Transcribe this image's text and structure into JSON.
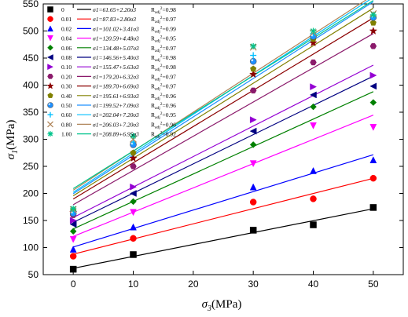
{
  "chart_data": {
    "type": "scatter",
    "xlabel_main": "σ",
    "xlabel_sub": "3",
    "xlabel_unit": "(MPa)",
    "ylabel_main": "σ",
    "ylabel_sub": "1",
    "ylabel_unit": "(MPa)",
    "xlim": [
      -5,
      55
    ],
    "ylim": [
      50,
      550
    ],
    "xticks": [
      0,
      10,
      20,
      30,
      40,
      50
    ],
    "yticks": [
      50,
      100,
      150,
      200,
      250,
      300,
      350,
      400,
      450,
      500,
      550
    ],
    "x": [
      0,
      10,
      30,
      40,
      50
    ],
    "series": [
      {
        "name": "0",
        "color": "#000000",
        "marker": "square",
        "values": [
          60,
          87,
          132,
          142,
          174
        ],
        "fit": "σ1=61.65+2.20σ3",
        "r2": "0.98",
        "intercept": 61.65,
        "slope": 2.2
      },
      {
        "name": "0.01",
        "color": "#ff0000",
        "marker": "circle",
        "values": [
          84,
          117,
          184,
          190,
          228
        ],
        "fit": "σ1=87.83+2.80σ3",
        "r2": "0.97",
        "intercept": 87.83,
        "slope": 2.8
      },
      {
        "name": "0.02",
        "color": "#0000ff",
        "marker": "triangle-up",
        "values": [
          97,
          138,
          212,
          242,
          262
        ],
        "fit": "σ1=101.02+3.41σ3",
        "r2": "0.99",
        "intercept": 101.02,
        "slope": 3.41
      },
      {
        "name": "0.04",
        "color": "#ff00ff",
        "marker": "triangle-down",
        "values": [
          115,
          165,
          255,
          325,
          322
        ],
        "fit": "σ1=120.59+4.48σ3",
        "r2": "0.95",
        "intercept": 120.59,
        "slope": 4.48
      },
      {
        "name": "0.06",
        "color": "#008000",
        "marker": "diamond",
        "values": [
          130,
          185,
          290,
          360,
          368
        ],
        "fit": "σ1=134.48+5.07σ3",
        "r2": "0.97",
        "intercept": 134.48,
        "slope": 5.07
      },
      {
        "name": "0.08",
        "color": "#000080",
        "marker": "triangle-left",
        "values": [
          143,
          200,
          315,
          382,
          398
        ],
        "fit": "σ1=146.56+5.40σ3",
        "r2": "0.98",
        "intercept": 146.56,
        "slope": 5.4
      },
      {
        "name": "0.10",
        "color": "#9400d3",
        "marker": "triangle-right",
        "values": [
          150,
          212,
          336,
          397,
          418
        ],
        "fit": "σ1=155.47+5.63σ3",
        "r2": "0.98",
        "intercept": 155.47,
        "slope": 5.63
      },
      {
        "name": "0.20",
        "color": "#8b1a6b",
        "marker": "hexagon",
        "values": [
          160,
          250,
          390,
          442,
          472
        ],
        "fit": "σ1=179.20+6.32σ3",
        "r2": "0.97",
        "intercept": 179.2,
        "slope": 6.32
      },
      {
        "name": "0.30",
        "color": "#8b0000",
        "marker": "star",
        "values": [
          165,
          265,
          420,
          478,
          500
        ],
        "fit": "σ1=189.70+6.69σ3",
        "r2": "0.97",
        "intercept": 189.7,
        "slope": 6.69
      },
      {
        "name": "0.40",
        "color": "#808000",
        "marker": "pentagon",
        "values": [
          168,
          275,
          430,
          485,
          515
        ],
        "fit": "σ1=195.61+6.93σ3",
        "r2": "0.96",
        "intercept": 195.61,
        "slope": 6.93
      },
      {
        "name": "0.50",
        "color": "#1e90ff",
        "marker": "shaded-circle",
        "values": [
          163,
          290,
          444,
          490,
          525
        ],
        "fit": "σ1=199.52+7.09σ3",
        "r2": "0.96",
        "intercept": 199.52,
        "slope": 7.09
      },
      {
        "name": "0.60",
        "color": "#00bfff",
        "marker": "plus",
        "values": [
          167,
          295,
          455,
          495,
          528
        ],
        "fit": "σ1=202.04+7.20σ3",
        "r2": "0.95",
        "intercept": 202.04,
        "slope": 7.2
      },
      {
        "name": "0.80",
        "color": "#b0855a",
        "marker": "x",
        "values": [
          170,
          300,
          470,
          497,
          532
        ],
        "fit": "σ1=206.03+7.20σ3",
        "r2": "0.96",
        "intercept": 206.03,
        "slope": 7.2
      },
      {
        "name": "1.00",
        "color": "#00c48c",
        "marker": "asterisk",
        "values": [
          172,
          306,
          472,
          500,
          530
        ],
        "fit": "σ1=208.89+6.95σ3",
        "r2": "0.92",
        "intercept": 208.89,
        "slope": 6.95
      }
    ],
    "legend_placement": "top-left",
    "grid": false
  }
}
